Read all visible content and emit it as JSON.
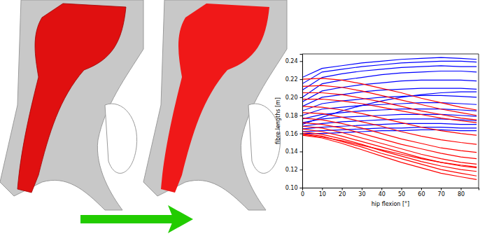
{
  "chart_data": {
    "type": "line",
    "x_label": "hip flexion [°]",
    "y_label": "fibre lengths [m]",
    "x": [
      0,
      10,
      20,
      30,
      40,
      50,
      60,
      70,
      80,
      88
    ],
    "xlim": [
      0,
      89
    ],
    "ylim": [
      0.1,
      0.248
    ],
    "xticks": [
      0,
      10,
      20,
      30,
      40,
      50,
      60,
      70,
      80
    ],
    "yticks": [
      {
        "value": 0.1,
        "label": "0.10"
      },
      0.12,
      0.14,
      0.16,
      0.18,
      {
        "value": 0.2,
        "label": "0.20"
      },
      0.22,
      0.24
    ],
    "grid": false,
    "series": [
      {
        "color": "blue",
        "values": [
          0.222,
          0.232,
          0.235,
          0.238,
          0.24,
          0.242,
          0.243,
          0.244,
          0.243,
          0.242
        ]
      },
      {
        "color": "blue",
        "values": [
          0.215,
          0.228,
          0.231,
          0.234,
          0.236,
          0.238,
          0.239,
          0.24,
          0.24,
          0.239
        ]
      },
      {
        "color": "blue",
        "values": [
          0.208,
          0.222,
          0.226,
          0.229,
          0.231,
          0.233,
          0.234,
          0.235,
          0.234,
          0.234
        ]
      },
      {
        "color": "blue",
        "values": [
          0.2,
          0.215,
          0.219,
          0.222,
          0.225,
          0.227,
          0.228,
          0.229,
          0.229,
          0.228
        ]
      },
      {
        "color": "blue",
        "values": [
          0.195,
          0.207,
          0.211,
          0.214,
          0.216,
          0.218,
          0.219,
          0.219,
          0.219,
          0.218
        ]
      },
      {
        "color": "blue",
        "values": [
          0.19,
          0.2,
          0.203,
          0.206,
          0.208,
          0.209,
          0.21,
          0.21,
          0.21,
          0.209
        ]
      },
      {
        "color": "blue",
        "values": [
          0.185,
          0.193,
          0.196,
          0.198,
          0.2,
          0.201,
          0.202,
          0.202,
          0.201,
          0.2
        ]
      },
      {
        "color": "blue",
        "values": [
          0.18,
          0.187,
          0.189,
          0.191,
          0.192,
          0.193,
          0.194,
          0.194,
          0.193,
          0.192
        ]
      },
      {
        "color": "blue",
        "values": [
          0.176,
          0.181,
          0.183,
          0.185,
          0.186,
          0.187,
          0.187,
          0.187,
          0.186,
          0.185
        ]
      },
      {
        "color": "blue",
        "values": [
          0.172,
          0.176,
          0.178,
          0.179,
          0.18,
          0.181,
          0.181,
          0.181,
          0.18,
          0.179
        ]
      },
      {
        "color": "blue",
        "values": [
          0.168,
          0.171,
          0.173,
          0.174,
          0.175,
          0.176,
          0.176,
          0.176,
          0.175,
          0.174
        ]
      },
      {
        "color": "blue",
        "values": [
          0.165,
          0.167,
          0.168,
          0.169,
          0.17,
          0.171,
          0.171,
          0.171,
          0.17,
          0.17
        ]
      },
      {
        "color": "blue",
        "values": [
          0.162,
          0.163,
          0.164,
          0.165,
          0.166,
          0.166,
          0.167,
          0.167,
          0.166,
          0.166
        ]
      },
      {
        "color": "blue",
        "values": [
          0.16,
          0.16,
          0.161,
          0.162,
          0.163,
          0.163,
          0.164,
          0.164,
          0.163,
          0.163
        ]
      },
      {
        "color": "blue",
        "values": [
          0.17,
          0.178,
          0.185,
          0.191,
          0.196,
          0.2,
          0.203,
          0.205,
          0.206,
          0.206
        ]
      },
      {
        "color": "red",
        "values": [
          0.22,
          0.221,
          0.219,
          0.215,
          0.21,
          0.205,
          0.199,
          0.194,
          0.189,
          0.186
        ]
      },
      {
        "color": "red",
        "values": [
          0.212,
          0.213,
          0.211,
          0.207,
          0.202,
          0.197,
          0.192,
          0.187,
          0.183,
          0.18
        ]
      },
      {
        "color": "red",
        "values": [
          0.205,
          0.205,
          0.203,
          0.199,
          0.195,
          0.19,
          0.185,
          0.181,
          0.177,
          0.175
        ]
      },
      {
        "color": "red",
        "values": [
          0.198,
          0.198,
          0.196,
          0.193,
          0.189,
          0.185,
          0.181,
          0.177,
          0.174,
          0.172
        ]
      },
      {
        "color": "red",
        "values": [
          0.19,
          0.189,
          0.186,
          0.182,
          0.177,
          0.172,
          0.167,
          0.163,
          0.16,
          0.158
        ]
      },
      {
        "color": "red",
        "values": [
          0.183,
          0.182,
          0.178,
          0.173,
          0.168,
          0.162,
          0.157,
          0.153,
          0.15,
          0.148
        ]
      },
      {
        "color": "red",
        "values": [
          0.177,
          0.175,
          0.171,
          0.166,
          0.16,
          0.154,
          0.149,
          0.144,
          0.141,
          0.139
        ]
      },
      {
        "color": "red",
        "values": [
          0.172,
          0.17,
          0.166,
          0.16,
          0.154,
          0.148,
          0.143,
          0.138,
          0.134,
          0.132
        ]
      },
      {
        "color": "red",
        "values": [
          0.168,
          0.166,
          0.161,
          0.155,
          0.149,
          0.143,
          0.137,
          0.132,
          0.128,
          0.126
        ]
      },
      {
        "color": "red",
        "values": [
          0.165,
          0.162,
          0.157,
          0.151,
          0.145,
          0.139,
          0.133,
          0.128,
          0.124,
          0.122
        ]
      },
      {
        "color": "red",
        "values": [
          0.162,
          0.159,
          0.154,
          0.148,
          0.141,
          0.135,
          0.129,
          0.124,
          0.12,
          0.118
        ]
      },
      {
        "color": "red",
        "values": [
          0.16,
          0.157,
          0.151,
          0.145,
          0.138,
          0.132,
          0.126,
          0.12,
          0.116,
          0.113
        ]
      },
      {
        "color": "red",
        "values": [
          0.158,
          0.155,
          0.149,
          0.142,
          0.135,
          0.128,
          0.122,
          0.116,
          0.112,
          0.109
        ]
      },
      {
        "color": "red",
        "values": [
          0.159,
          0.156,
          0.152,
          0.147,
          0.142,
          0.137,
          0.132,
          0.128,
          0.125,
          0.123
        ]
      }
    ]
  }
}
